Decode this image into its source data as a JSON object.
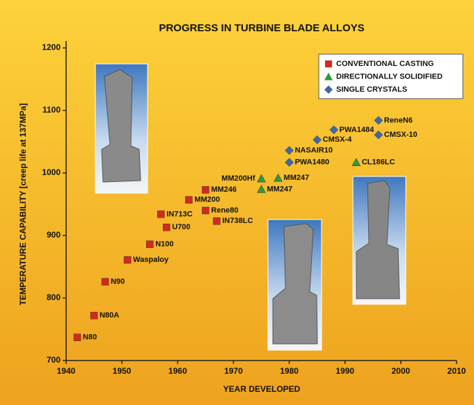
{
  "chart_data": {
    "type": "scatter",
    "title": "PROGRESS IN TURBINE BLADE ALLOYS",
    "x_label": "YEAR DEVELOPED",
    "y_label": "TEMPERATURE CAPABILITY [creep life at 137MPa]",
    "xlim": [
      1940,
      2010
    ],
    "xticks": [
      1940,
      1950,
      1960,
      1970,
      1980,
      1990,
      2000,
      2010
    ],
    "ylim": [
      700,
      1200
    ],
    "yticks": [
      700,
      800,
      900,
      1000,
      1100,
      1200
    ],
    "legend": "top-right",
    "series": [
      {
        "name": "CONVENTIONAL CASTING",
        "color": "#d42a1e",
        "marker": "square",
        "x": [
          1942,
          1945,
          1947,
          1951,
          1955,
          1957,
          1958,
          1962,
          1965,
          1965,
          1967
        ],
        "values": [
          737,
          772,
          826,
          861,
          886,
          934,
          913,
          957,
          973,
          940,
          923
        ],
        "labels": [
          "N80",
          "N80A",
          "N90",
          "Waspaloy",
          "N100",
          "IN713C",
          "U700",
          "MM200",
          "MM246",
          "Rene80",
          "IN738LC"
        ]
      },
      {
        "name": "DIRECTIONALLY SOLIDIFIED",
        "color": "#2e9a3c",
        "marker": "triangle",
        "x": [
          1975,
          1978,
          1975,
          1992
        ],
        "values": [
          991,
          992,
          974,
          1017
        ],
        "labels": [
          "MM200Hf",
          "MM247",
          "MM247",
          "CL186LC"
        ]
      },
      {
        "name": "SINGLE CRYSTALS",
        "color": "#3d6aa6",
        "marker": "diamond",
        "x": [
          1980,
          1980,
          1985,
          1988,
          1996,
          1996
        ],
        "values": [
          1036,
          1017,
          1053,
          1069,
          1084,
          1061
        ],
        "labels": [
          "NASAIR10",
          "PWA1480",
          "CMSX-4",
          "PWA1484",
          "ReneN6",
          "CMSX-10"
        ]
      }
    ]
  }
}
